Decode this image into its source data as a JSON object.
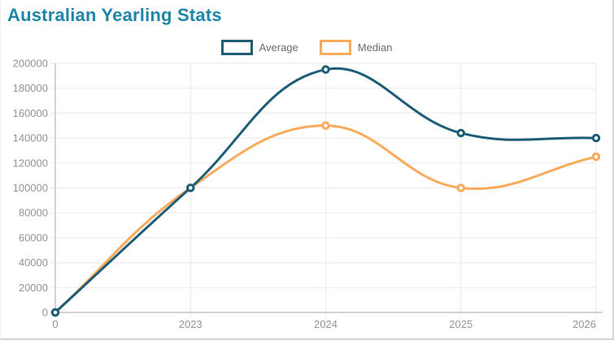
{
  "title": "Australian Yearling Stats",
  "colors": {
    "title": "#1f86a7",
    "average_line": "#1d5d77",
    "median_line": "#f9aa5b",
    "axis_text": "#949494",
    "grid_line": "#ededed",
    "axis_line": "#b8b8b8",
    "legend_text": "#6b6b6b"
  },
  "legend": {
    "items": [
      {
        "label": "Average"
      },
      {
        "label": "Median"
      }
    ]
  },
  "chart_data": {
    "type": "line",
    "x": [
      "0",
      "2023",
      "2024",
      "2025",
      "2026"
    ],
    "series": [
      {
        "name": "Average",
        "color": "#1d5d77",
        "values": [
          0,
          100000,
          195000,
          144000,
          140000
        ]
      },
      {
        "name": "Median",
        "color": "#f9aa5b",
        "values": [
          0,
          100000,
          150000,
          100000,
          125000
        ]
      }
    ],
    "title": "Australian Yearling Stats",
    "xlabel": "",
    "ylabel": "",
    "ylim": [
      0,
      200000
    ],
    "ytick_step": 20000,
    "grid": true,
    "legend_position": "top",
    "line_style": "smooth",
    "marker": "circle"
  }
}
